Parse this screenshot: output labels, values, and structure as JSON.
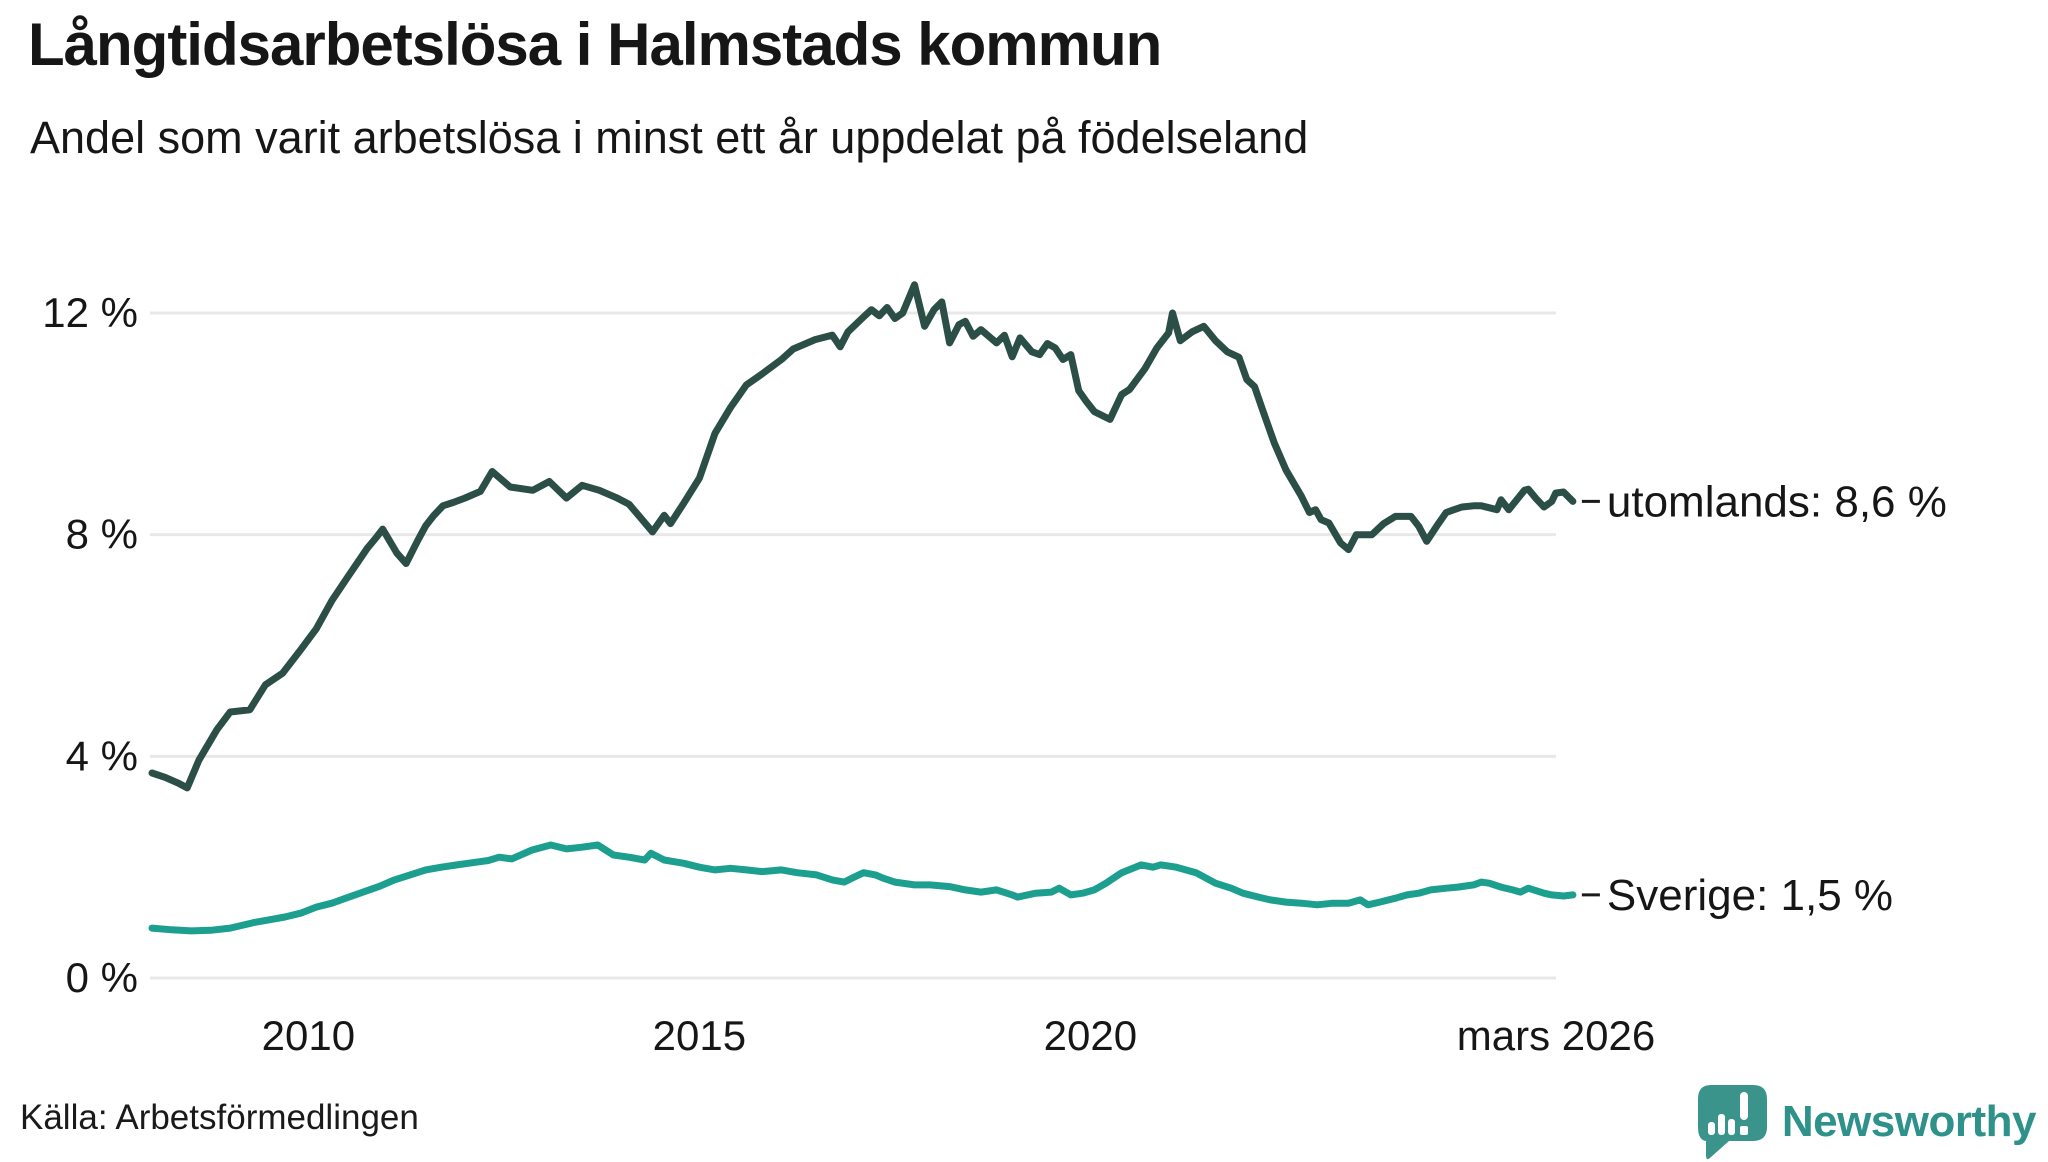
{
  "header": {
    "title": "Långtidsarbetslösa i Halmstads kommun",
    "subtitle": "Andel som varit arbetslösa i minst ett år uppdelat på födelseland"
  },
  "footer": {
    "source": "Källa: Arbetsförmedlingen",
    "brand": "Newsworthy",
    "brand_icon": "newsworthy-chart-bubble-icon"
  },
  "colors": {
    "utomlands_line": "#2b4f46",
    "sverige_line": "#1d9f8f",
    "grid": "#e8e8e8",
    "text": "#161616",
    "brand_teal": "#2e918a",
    "brand_icon_teal": "#3a948b"
  },
  "chart_data": {
    "type": "line",
    "title": "Långtidsarbetslösa i Halmstads kommun",
    "subtitle": "Andel som varit arbetslösa i minst ett år uppdelat på födelseland",
    "x_unit": "decimal_year",
    "x_range": [
      2008.0,
      2026.25
    ],
    "ylim": [
      0,
      13
    ],
    "grid": "horizontal",
    "legend_position": "end-of-line-labels",
    "y_ticks": [
      0,
      4,
      8,
      12
    ],
    "y_tick_labels": [
      "0 %",
      "4 %",
      "8 %",
      "12 %"
    ],
    "x_ticks": [
      2010,
      2015,
      2020,
      2026.25
    ],
    "x_tick_labels": [
      "2010",
      "2015",
      "2020",
      "mars 2026"
    ],
    "series": [
      {
        "name": "utomlands",
        "end_label": "utomlands: 8,6 %",
        "end_value_text": "8,6 %",
        "color": "#2b4f46",
        "points": [
          [
            2008.0,
            3.7
          ],
          [
            2008.17,
            3.62
          ],
          [
            2008.33,
            3.52
          ],
          [
            2008.45,
            3.43
          ],
          [
            2008.6,
            3.93
          ],
          [
            2008.83,
            4.48
          ],
          [
            2009.0,
            4.8
          ],
          [
            2009.25,
            4.84
          ],
          [
            2009.45,
            5.29
          ],
          [
            2009.67,
            5.5
          ],
          [
            2009.9,
            5.92
          ],
          [
            2010.1,
            6.3
          ],
          [
            2010.3,
            6.81
          ],
          [
            2010.5,
            7.23
          ],
          [
            2010.62,
            7.48
          ],
          [
            2010.75,
            7.75
          ],
          [
            2010.88,
            7.97
          ],
          [
            2010.95,
            8.1
          ],
          [
            2011.13,
            7.67
          ],
          [
            2011.25,
            7.48
          ],
          [
            2011.4,
            7.9
          ],
          [
            2011.5,
            8.16
          ],
          [
            2011.6,
            8.34
          ],
          [
            2011.72,
            8.52
          ],
          [
            2011.85,
            8.58
          ],
          [
            2012.0,
            8.66
          ],
          [
            2012.2,
            8.78
          ],
          [
            2012.35,
            9.14
          ],
          [
            2012.58,
            8.86
          ],
          [
            2012.87,
            8.8
          ],
          [
            2013.08,
            8.96
          ],
          [
            2013.3,
            8.66
          ],
          [
            2013.5,
            8.89
          ],
          [
            2013.72,
            8.8
          ],
          [
            2013.95,
            8.66
          ],
          [
            2014.1,
            8.55
          ],
          [
            2014.25,
            8.3
          ],
          [
            2014.4,
            8.05
          ],
          [
            2014.55,
            8.35
          ],
          [
            2014.63,
            8.2
          ],
          [
            2014.8,
            8.57
          ],
          [
            2015.0,
            9.02
          ],
          [
            2015.2,
            9.83
          ],
          [
            2015.4,
            10.3
          ],
          [
            2015.6,
            10.7
          ],
          [
            2015.8,
            10.9
          ],
          [
            2016.05,
            11.16
          ],
          [
            2016.2,
            11.35
          ],
          [
            2016.48,
            11.52
          ],
          [
            2016.7,
            11.6
          ],
          [
            2016.8,
            11.39
          ],
          [
            2016.9,
            11.66
          ],
          [
            2017.1,
            11.93
          ],
          [
            2017.2,
            12.06
          ],
          [
            2017.3,
            11.95
          ],
          [
            2017.4,
            12.1
          ],
          [
            2017.5,
            11.9
          ],
          [
            2017.6,
            12.0
          ],
          [
            2017.75,
            12.51
          ],
          [
            2017.88,
            11.76
          ],
          [
            2018.0,
            12.06
          ],
          [
            2018.1,
            12.2
          ],
          [
            2018.2,
            11.46
          ],
          [
            2018.32,
            11.79
          ],
          [
            2018.4,
            11.85
          ],
          [
            2018.5,
            11.58
          ],
          [
            2018.6,
            11.7
          ],
          [
            2018.8,
            11.46
          ],
          [
            2018.9,
            11.6
          ],
          [
            2019.0,
            11.21
          ],
          [
            2019.1,
            11.55
          ],
          [
            2019.25,
            11.3
          ],
          [
            2019.35,
            11.25
          ],
          [
            2019.45,
            11.45
          ],
          [
            2019.55,
            11.37
          ],
          [
            2019.65,
            11.16
          ],
          [
            2019.75,
            11.25
          ],
          [
            2019.85,
            10.6
          ],
          [
            2019.95,
            10.4
          ],
          [
            2020.05,
            10.22
          ],
          [
            2020.15,
            10.15
          ],
          [
            2020.25,
            10.08
          ],
          [
            2020.4,
            10.53
          ],
          [
            2020.5,
            10.62
          ],
          [
            2020.7,
            11.0
          ],
          [
            2020.85,
            11.37
          ],
          [
            2021.0,
            11.64
          ],
          [
            2021.05,
            12.0
          ],
          [
            2021.15,
            11.5
          ],
          [
            2021.3,
            11.66
          ],
          [
            2021.45,
            11.76
          ],
          [
            2021.6,
            11.5
          ],
          [
            2021.75,
            11.3
          ],
          [
            2021.9,
            11.2
          ],
          [
            2022.0,
            10.8
          ],
          [
            2022.1,
            10.67
          ],
          [
            2022.2,
            10.26
          ],
          [
            2022.35,
            9.66
          ],
          [
            2022.5,
            9.17
          ],
          [
            2022.7,
            8.69
          ],
          [
            2022.8,
            8.4
          ],
          [
            2022.88,
            8.45
          ],
          [
            2022.95,
            8.27
          ],
          [
            2023.05,
            8.21
          ],
          [
            2023.2,
            7.85
          ],
          [
            2023.3,
            7.73
          ],
          [
            2023.4,
            8.0
          ],
          [
            2023.6,
            8.0
          ],
          [
            2023.75,
            8.2
          ],
          [
            2023.9,
            8.33
          ],
          [
            2024.1,
            8.33
          ],
          [
            2024.2,
            8.15
          ],
          [
            2024.3,
            7.88
          ],
          [
            2024.45,
            8.2
          ],
          [
            2024.55,
            8.4
          ],
          [
            2024.65,
            8.45
          ],
          [
            2024.75,
            8.5
          ],
          [
            2024.9,
            8.52
          ],
          [
            2025.0,
            8.52
          ],
          [
            2025.2,
            8.45
          ],
          [
            2025.25,
            8.63
          ],
          [
            2025.35,
            8.45
          ],
          [
            2025.55,
            8.8
          ],
          [
            2025.6,
            8.82
          ],
          [
            2025.7,
            8.65
          ],
          [
            2025.8,
            8.5
          ],
          [
            2025.9,
            8.6
          ],
          [
            2025.95,
            8.75
          ],
          [
            2026.05,
            8.77
          ],
          [
            2026.17,
            8.6
          ]
        ]
      },
      {
        "name": "Sverige",
        "end_label": "Sverige: 1,5 %",
        "end_value_text": "1,5 %",
        "color": "#1d9f8f",
        "points": [
          [
            2008.0,
            0.9
          ],
          [
            2008.25,
            0.87
          ],
          [
            2008.5,
            0.85
          ],
          [
            2008.75,
            0.86
          ],
          [
            2009.0,
            0.9
          ],
          [
            2009.3,
            1.0
          ],
          [
            2009.5,
            1.05
          ],
          [
            2009.7,
            1.1
          ],
          [
            2009.9,
            1.17
          ],
          [
            2010.1,
            1.28
          ],
          [
            2010.3,
            1.35
          ],
          [
            2010.5,
            1.45
          ],
          [
            2010.7,
            1.55
          ],
          [
            2010.9,
            1.65
          ],
          [
            2011.1,
            1.77
          ],
          [
            2011.3,
            1.86
          ],
          [
            2011.5,
            1.95
          ],
          [
            2011.7,
            2.0
          ],
          [
            2011.9,
            2.04
          ],
          [
            2012.1,
            2.08
          ],
          [
            2012.3,
            2.12
          ],
          [
            2012.44,
            2.18
          ],
          [
            2012.6,
            2.15
          ],
          [
            2012.86,
            2.31
          ],
          [
            2013.1,
            2.4
          ],
          [
            2013.3,
            2.33
          ],
          [
            2013.5,
            2.36
          ],
          [
            2013.7,
            2.4
          ],
          [
            2013.9,
            2.22
          ],
          [
            2014.1,
            2.18
          ],
          [
            2014.3,
            2.13
          ],
          [
            2014.38,
            2.25
          ],
          [
            2014.55,
            2.13
          ],
          [
            2014.8,
            2.07
          ],
          [
            2015.0,
            2.0
          ],
          [
            2015.2,
            1.95
          ],
          [
            2015.4,
            1.98
          ],
          [
            2015.6,
            1.95
          ],
          [
            2015.8,
            1.92
          ],
          [
            2016.05,
            1.95
          ],
          [
            2016.25,
            1.9
          ],
          [
            2016.5,
            1.86
          ],
          [
            2016.7,
            1.77
          ],
          [
            2016.85,
            1.73
          ],
          [
            2016.95,
            1.8
          ],
          [
            2017.1,
            1.9
          ],
          [
            2017.25,
            1.86
          ],
          [
            2017.35,
            1.8
          ],
          [
            2017.5,
            1.73
          ],
          [
            2017.75,
            1.68
          ],
          [
            2017.95,
            1.68
          ],
          [
            2018.2,
            1.65
          ],
          [
            2018.4,
            1.59
          ],
          [
            2018.6,
            1.55
          ],
          [
            2018.8,
            1.59
          ],
          [
            2019.0,
            1.5
          ],
          [
            2019.07,
            1.46
          ],
          [
            2019.3,
            1.53
          ],
          [
            2019.5,
            1.55
          ],
          [
            2019.6,
            1.62
          ],
          [
            2019.75,
            1.5
          ],
          [
            2019.9,
            1.53
          ],
          [
            2020.05,
            1.59
          ],
          [
            2020.2,
            1.71
          ],
          [
            2020.4,
            1.9
          ],
          [
            2020.65,
            2.04
          ],
          [
            2020.8,
            2.0
          ],
          [
            2020.9,
            2.04
          ],
          [
            2021.1,
            2.0
          ],
          [
            2021.35,
            1.9
          ],
          [
            2021.6,
            1.71
          ],
          [
            2021.8,
            1.62
          ],
          [
            2021.95,
            1.53
          ],
          [
            2022.15,
            1.46
          ],
          [
            2022.3,
            1.41
          ],
          [
            2022.5,
            1.37
          ],
          [
            2022.7,
            1.35
          ],
          [
            2022.9,
            1.32
          ],
          [
            2023.1,
            1.35
          ],
          [
            2023.3,
            1.35
          ],
          [
            2023.45,
            1.41
          ],
          [
            2023.55,
            1.32
          ],
          [
            2023.7,
            1.37
          ],
          [
            2023.9,
            1.44
          ],
          [
            2024.05,
            1.5
          ],
          [
            2024.2,
            1.53
          ],
          [
            2024.35,
            1.59
          ],
          [
            2024.55,
            1.62
          ],
          [
            2024.7,
            1.64
          ],
          [
            2024.9,
            1.68
          ],
          [
            2025.0,
            1.73
          ],
          [
            2025.1,
            1.71
          ],
          [
            2025.25,
            1.64
          ],
          [
            2025.4,
            1.59
          ],
          [
            2025.5,
            1.55
          ],
          [
            2025.6,
            1.62
          ],
          [
            2025.8,
            1.53
          ],
          [
            2025.9,
            1.5
          ],
          [
            2026.05,
            1.48
          ],
          [
            2026.17,
            1.5
          ]
        ]
      }
    ]
  }
}
